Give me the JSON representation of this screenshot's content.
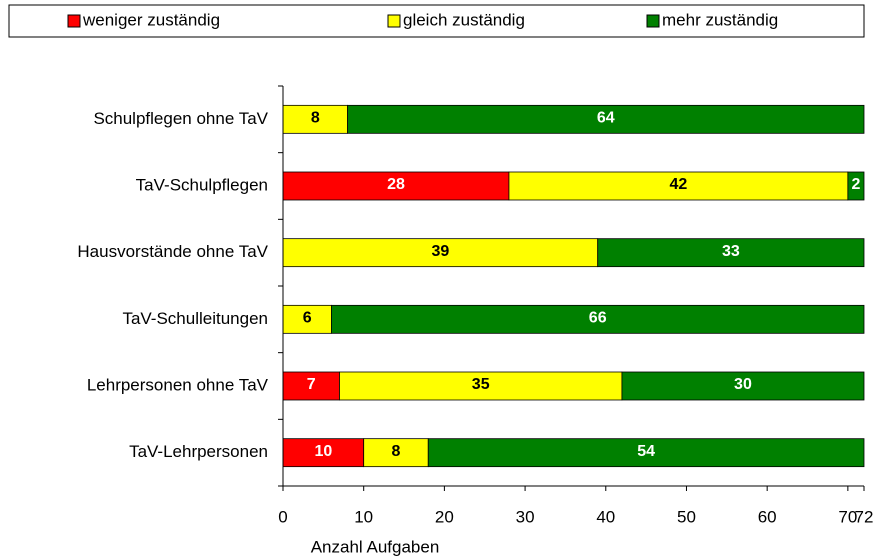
{
  "chart_data": {
    "type": "stacked_barh",
    "categories": [
      "Schulpflegen ohne TaV",
      "TaV-Schulpflegen",
      "Hausvorstände ohne TaV",
      "TaV-Schulleitungen",
      "Lehrpersonen ohne TaV",
      "TaV-Lehrpersonen"
    ],
    "series": [
      {
        "name": "weniger zuständig",
        "color": "#ff0000",
        "label_color": "#ffffff",
        "values": [
          null,
          28,
          null,
          null,
          7,
          10
        ]
      },
      {
        "name": "gleich zuständig",
        "color": "#ffff00",
        "label_color": "#000000",
        "values": [
          8,
          42,
          39,
          6,
          35,
          8
        ]
      },
      {
        "name": "mehr zuständig",
        "color": "#008000",
        "label_color": "#ffffff",
        "values": [
          64,
          2,
          33,
          66,
          30,
          54
        ]
      }
    ],
    "xlabel": "Anzahl Aufgaben",
    "xlim": [
      0,
      72
    ],
    "xticks": [
      0,
      10,
      20,
      30,
      40,
      50,
      60,
      70,
      72
    ],
    "legend": "top"
  }
}
